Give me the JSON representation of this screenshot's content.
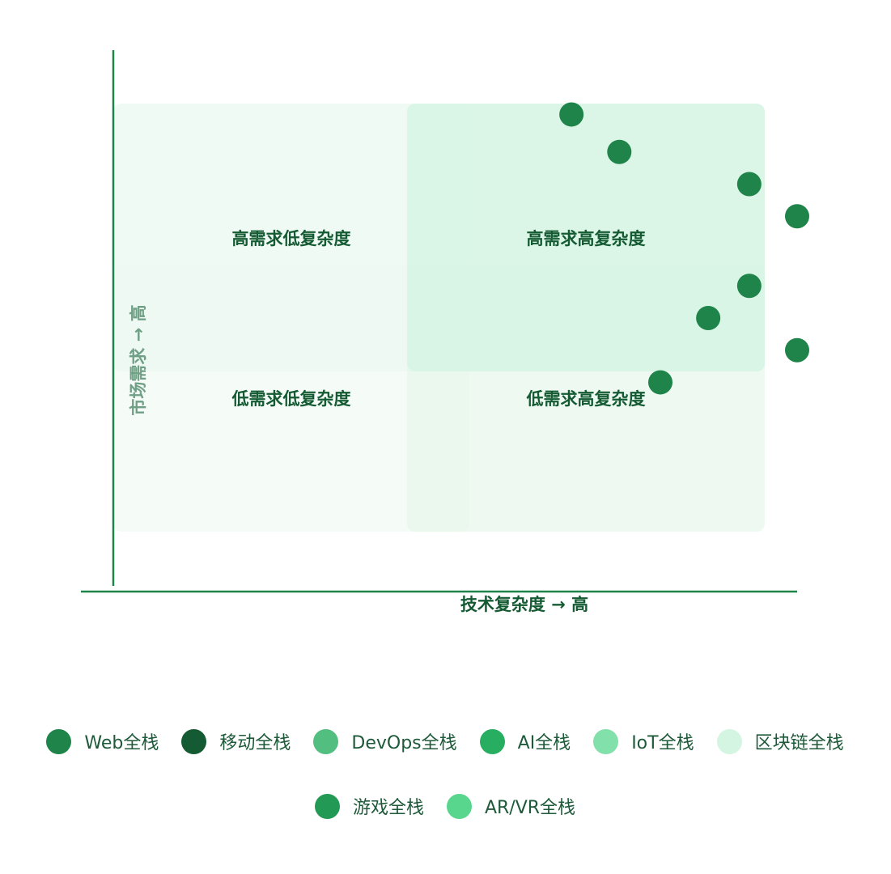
{
  "chart_data": {
    "type": "scatter",
    "x_label": "技术复杂度 → 高",
    "y_label": "市场需求 → 高",
    "quadrants": [
      "高需求低复杂度",
      "高需求高复杂度",
      "低需求低复杂度",
      "低需求高复杂度"
    ],
    "xlim": [
      0,
      100
    ],
    "ylim": [
      0,
      100
    ],
    "point_color": "#1e8449",
    "series": [
      {
        "name": "Web全栈",
        "color": "#1e8449",
        "x": [
          67
        ],
        "values": [
          88
        ]
      },
      {
        "name": "移动全栈",
        "color": "#145a32",
        "x": [
          74
        ],
        "values": [
          81
        ]
      },
      {
        "name": "DevOps全栈",
        "color": "#52be80",
        "x": [
          93
        ],
        "values": [
          75
        ]
      },
      {
        "name": "AI全栈",
        "color": "#27ae60",
        "x": [
          100
        ],
        "values": [
          69
        ]
      },
      {
        "name": "IoT全栈",
        "color": "#82e0aa",
        "x": [
          93
        ],
        "values": [
          56
        ]
      },
      {
        "name": "区块链全栈",
        "color": "#d5f5e3",
        "x": [
          87
        ],
        "values": [
          50
        ]
      },
      {
        "name": "游戏全栈",
        "color": "#229954",
        "x": [
          100
        ],
        "values": [
          44
        ]
      },
      {
        "name": "AR/VR全栈",
        "color": "#58d68d",
        "x": [
          80
        ],
        "values": [
          38
        ]
      }
    ]
  }
}
